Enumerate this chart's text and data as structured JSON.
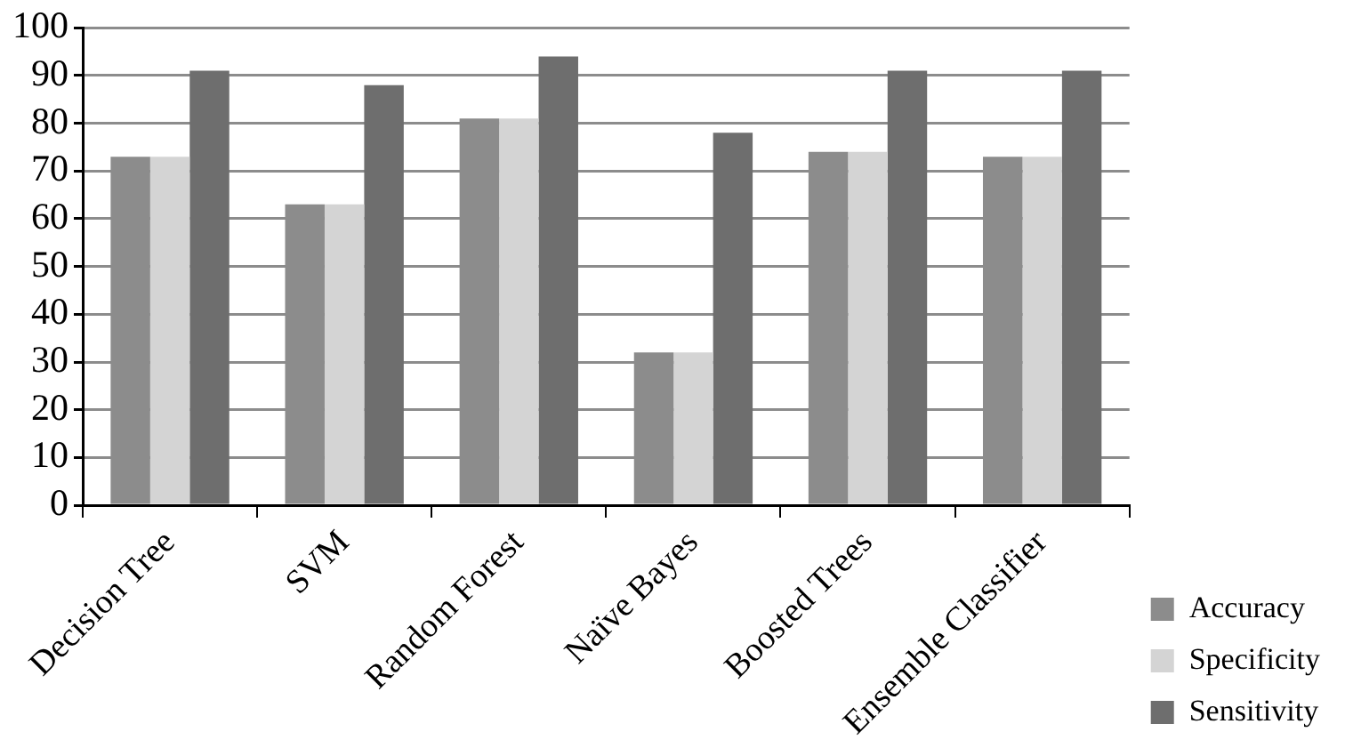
{
  "chart_data": {
    "type": "bar",
    "categories": [
      "Decision Tree",
      "SVM",
      "Random Forest",
      "Naïve Bayes",
      "Boosted Trees",
      "Ensemble Classifier"
    ],
    "series": [
      {
        "name": "Accuracy",
        "color": "#8c8c8c",
        "values": [
          73,
          63,
          81,
          32,
          74,
          73
        ]
      },
      {
        "name": "Specificity",
        "color": "#d4d4d4",
        "values": [
          73,
          63,
          81,
          32,
          74,
          73
        ]
      },
      {
        "name": "Sensitivity",
        "color": "#6e6e6e",
        "values": [
          91,
          88,
          94,
          78,
          91,
          91
        ]
      }
    ],
    "ylim": [
      0,
      100
    ],
    "yticks": [
      0,
      10,
      20,
      30,
      40,
      50,
      60,
      70,
      80,
      90,
      100
    ],
    "grid": "y",
    "legend": "bottom right"
  }
}
